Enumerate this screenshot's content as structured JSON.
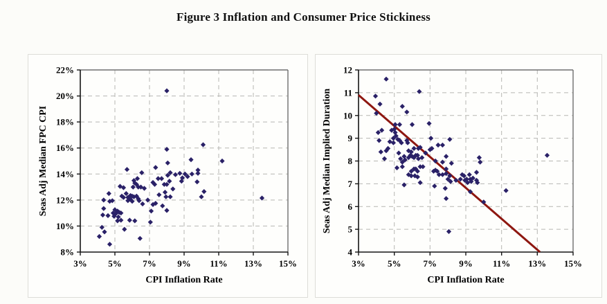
{
  "figure": {
    "title": "Figure 3 Inflation and Consumer Price Stickiness"
  },
  "colors": {
    "marker": "#2A2167",
    "trendline": "#8E1710",
    "gridline": "#B6B6B2",
    "frame": "#6E6E6E",
    "axis": "#141414",
    "page_bg": "#FCFCF9"
  },
  "chart_data": [
    {
      "type": "scatter",
      "name": "inflation-vs-fpc-cpi",
      "title": "",
      "xlabel": "CPI Inflation Rate",
      "ylabel": "Seas Adj Median FPC CPI",
      "xlim": [
        3,
        15
      ],
      "ylim": [
        8,
        22
      ],
      "xticks": [
        3,
        5,
        7,
        9,
        11,
        13,
        15
      ],
      "yticks": [
        8,
        10,
        12,
        14,
        16,
        18,
        20,
        22
      ],
      "xtick_suffix": "%",
      "ytick_suffix": "%",
      "grid": "dashed",
      "legend": "none",
      "marker": "diamond",
      "points": [
        [
          8.0,
          20.4
        ],
        [
          8.0,
          15.9
        ],
        [
          10.1,
          16.25
        ],
        [
          11.2,
          15.0
        ],
        [
          9.4,
          15.1
        ],
        [
          8.05,
          14.85
        ],
        [
          5.7,
          14.35
        ],
        [
          7.35,
          14.5
        ],
        [
          6.55,
          14.1
        ],
        [
          9.8,
          14.3
        ],
        [
          9.05,
          14.0
        ],
        [
          9.45,
          14.0
        ],
        [
          9.2,
          13.8
        ],
        [
          8.9,
          13.7
        ],
        [
          8.2,
          14.1
        ],
        [
          7.7,
          13.65
        ],
        [
          7.5,
          13.65
        ],
        [
          8.5,
          13.95
        ],
        [
          8.75,
          14.05
        ],
        [
          9.8,
          14.05
        ],
        [
          8.85,
          13.45
        ],
        [
          9.75,
          13.4
        ],
        [
          6.1,
          13.5
        ],
        [
          6.3,
          13.65
        ],
        [
          8.05,
          13.9
        ],
        [
          8.15,
          13.45
        ],
        [
          7.85,
          13.2
        ],
        [
          8.0,
          13.2
        ],
        [
          7.2,
          13.35
        ],
        [
          7.3,
          13.2
        ],
        [
          6.05,
          13.0
        ],
        [
          6.35,
          13.0
        ],
        [
          6.5,
          13.0
        ],
        [
          6.7,
          12.9
        ],
        [
          5.65,
          12.5
        ],
        [
          5.3,
          13.05
        ],
        [
          5.5,
          12.95
        ],
        [
          6.25,
          13.2
        ],
        [
          6.15,
          13.3
        ],
        [
          7.55,
          12.4
        ],
        [
          7.9,
          12.6
        ],
        [
          8.35,
          12.85
        ],
        [
          8.2,
          12.25
        ],
        [
          7.95,
          12.25
        ],
        [
          10.15,
          12.65
        ],
        [
          10.0,
          12.25
        ],
        [
          13.5,
          12.15
        ],
        [
          4.65,
          12.5
        ],
        [
          4.35,
          12.0
        ],
        [
          4.7,
          11.9
        ],
        [
          4.85,
          11.95
        ],
        [
          5.4,
          12.3
        ],
        [
          5.5,
          12.2
        ],
        [
          5.75,
          12.2
        ],
        [
          5.9,
          12.35
        ],
        [
          6.0,
          12.3
        ],
        [
          6.1,
          12.25
        ],
        [
          5.9,
          12.05
        ],
        [
          5.75,
          11.95
        ],
        [
          6.0,
          11.9
        ],
        [
          6.25,
          12.3
        ],
        [
          6.35,
          12.1
        ],
        [
          6.4,
          11.95
        ],
        [
          6.9,
          12.0
        ],
        [
          7.35,
          11.75
        ],
        [
          7.2,
          11.65
        ],
        [
          6.6,
          11.7
        ],
        [
          7.75,
          11.55
        ],
        [
          8.0,
          11.2
        ],
        [
          7.1,
          11.15
        ],
        [
          4.35,
          11.35
        ],
        [
          5.0,
          11.25
        ],
        [
          5.15,
          11.15
        ],
        [
          4.9,
          11.0
        ],
        [
          5.05,
          10.95
        ],
        [
          5.25,
          11.05
        ],
        [
          5.35,
          11.0
        ],
        [
          4.3,
          10.85
        ],
        [
          4.6,
          10.8
        ],
        [
          4.95,
          10.75
        ],
        [
          5.2,
          10.7
        ],
        [
          5.35,
          10.45
        ],
        [
          5.15,
          10.4
        ],
        [
          5.85,
          10.45
        ],
        [
          6.15,
          10.4
        ],
        [
          7.05,
          10.3
        ],
        [
          5.55,
          9.75
        ],
        [
          4.25,
          9.9
        ],
        [
          4.4,
          9.55
        ],
        [
          4.1,
          9.2
        ],
        [
          6.45,
          9.05
        ],
        [
          4.7,
          8.6
        ]
      ]
    },
    {
      "type": "scatter",
      "name": "inflation-vs-implied-duration",
      "title": "",
      "xlabel": "CPI Inflation Rate",
      "ylabel": "Seas Adj Median Implied Duration",
      "xlim": [
        3,
        15
      ],
      "ylim": [
        4,
        12
      ],
      "xticks": [
        3,
        5,
        7,
        9,
        11,
        13,
        15
      ],
      "yticks": [
        4,
        5,
        6,
        7,
        8,
        9,
        10,
        11,
        12
      ],
      "xtick_suffix": "%",
      "ytick_suffix": "",
      "grid": "dashed",
      "legend": "none",
      "marker": "diamond",
      "trendline": {
        "x1": 3.0,
        "y1": 10.9,
        "x2": 13.15,
        "y2": 4.0
      },
      "points": [
        [
          4.55,
          11.6
        ],
        [
          6.4,
          11.05
        ],
        [
          3.95,
          10.85
        ],
        [
          4.2,
          10.5
        ],
        [
          5.45,
          10.4
        ],
        [
          4.0,
          10.1
        ],
        [
          5.7,
          10.15
        ],
        [
          5.05,
          9.6
        ],
        [
          5.3,
          9.6
        ],
        [
          6.0,
          9.6
        ],
        [
          6.95,
          9.65
        ],
        [
          4.3,
          9.35
        ],
        [
          4.1,
          9.25
        ],
        [
          4.85,
          9.35
        ],
        [
          5.0,
          9.4
        ],
        [
          5.05,
          9.25
        ],
        [
          5.1,
          9.1
        ],
        [
          4.95,
          9.0
        ],
        [
          5.2,
          8.95
        ],
        [
          7.05,
          9.0
        ],
        [
          8.1,
          8.95
        ],
        [
          4.15,
          8.9
        ],
        [
          4.75,
          8.85
        ],
        [
          4.95,
          8.8
        ],
        [
          5.3,
          8.9
        ],
        [
          5.4,
          8.8
        ],
        [
          5.7,
          8.9
        ],
        [
          5.75,
          8.8
        ],
        [
          7.45,
          8.7
        ],
        [
          7.7,
          8.7
        ],
        [
          4.25,
          8.4
        ],
        [
          4.55,
          8.45
        ],
        [
          4.65,
          8.55
        ],
        [
          5.8,
          8.45
        ],
        [
          5.95,
          8.4
        ],
        [
          6.1,
          8.55
        ],
        [
          6.35,
          8.55
        ],
        [
          6.45,
          8.6
        ],
        [
          7.1,
          8.55
        ],
        [
          7.0,
          8.5
        ],
        [
          4.45,
          8.1
        ],
        [
          5.25,
          8.35
        ],
        [
          5.35,
          8.1
        ],
        [
          5.45,
          7.95
        ],
        [
          5.55,
          8.2
        ],
        [
          5.6,
          8.05
        ],
        [
          5.8,
          8.15
        ],
        [
          5.9,
          8.25
        ],
        [
          6.0,
          8.2
        ],
        [
          6.1,
          8.15
        ],
        [
          6.2,
          8.25
        ],
        [
          6.3,
          8.25
        ],
        [
          6.35,
          8.1
        ],
        [
          6.55,
          8.15
        ],
        [
          6.75,
          8.35
        ],
        [
          7.9,
          8.2
        ],
        [
          7.3,
          8.0
        ],
        [
          7.7,
          7.95
        ],
        [
          8.2,
          7.9
        ],
        [
          9.75,
          8.15
        ],
        [
          9.8,
          7.95
        ],
        [
          13.55,
          8.25
        ],
        [
          5.15,
          7.7
        ],
        [
          5.45,
          7.75
        ],
        [
          5.95,
          7.55
        ],
        [
          6.1,
          7.65
        ],
        [
          6.2,
          7.65
        ],
        [
          6.3,
          7.55
        ],
        [
          6.45,
          7.75
        ],
        [
          6.6,
          7.75
        ],
        [
          5.8,
          7.4
        ],
        [
          5.95,
          7.35
        ],
        [
          6.15,
          7.35
        ],
        [
          6.3,
          7.3
        ],
        [
          7.2,
          7.55
        ],
        [
          7.3,
          7.6
        ],
        [
          7.4,
          7.55
        ],
        [
          7.5,
          7.4
        ],
        [
          7.7,
          7.4
        ],
        [
          7.9,
          7.45
        ],
        [
          7.9,
          7.65
        ],
        [
          8.1,
          7.35
        ],
        [
          8.0,
          7.2
        ],
        [
          8.15,
          7.1
        ],
        [
          8.45,
          7.15
        ],
        [
          8.7,
          7.2
        ],
        [
          8.8,
          7.4
        ],
        [
          8.9,
          7.35
        ],
        [
          8.95,
          7.15
        ],
        [
          9.05,
          7.2
        ],
        [
          9.1,
          7.05
        ],
        [
          9.2,
          7.4
        ],
        [
          9.25,
          7.2
        ],
        [
          9.3,
          7.1
        ],
        [
          9.4,
          7.25
        ],
        [
          9.6,
          7.5
        ],
        [
          9.6,
          7.15
        ],
        [
          9.65,
          7.05
        ],
        [
          6.45,
          7.05
        ],
        [
          5.55,
          6.95
        ],
        [
          7.25,
          6.9
        ],
        [
          7.85,
          6.8
        ],
        [
          9.25,
          6.65
        ],
        [
          11.25,
          6.7
        ],
        [
          7.9,
          6.35
        ],
        [
          10.0,
          6.2
        ],
        [
          8.05,
          4.9
        ]
      ]
    }
  ]
}
